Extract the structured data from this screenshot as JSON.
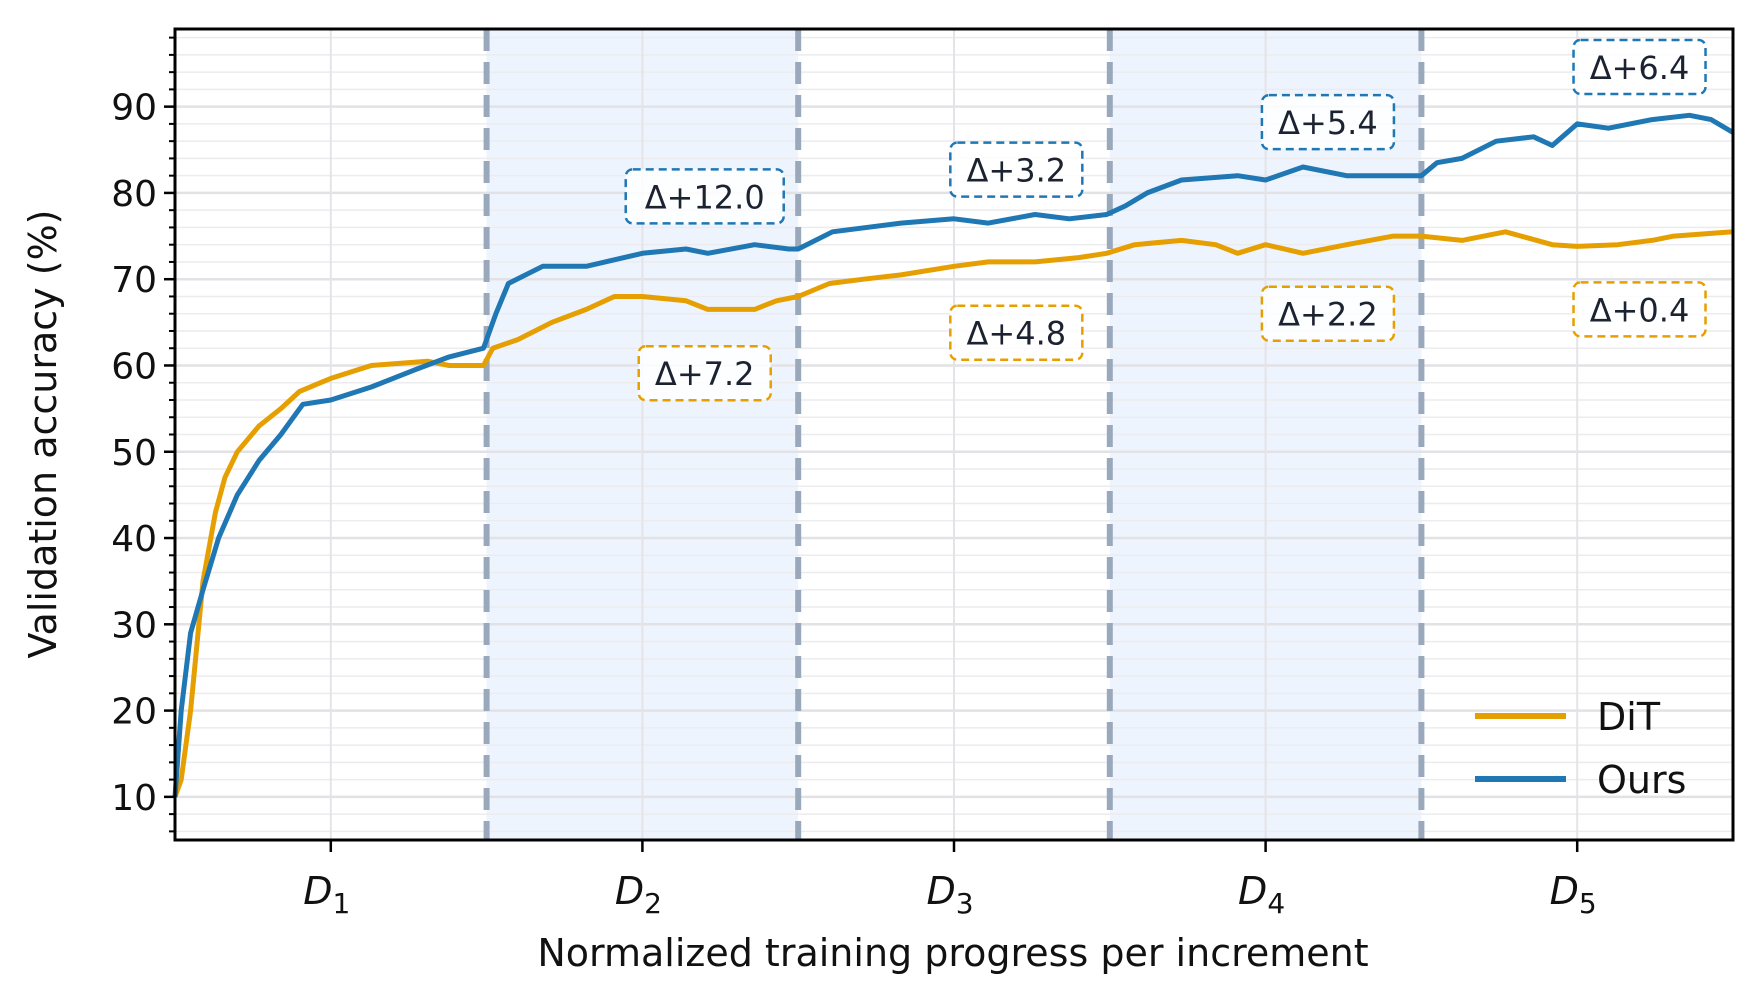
{
  "chart_data": {
    "type": "line",
    "title": "",
    "xlabel": "Normalized training progress per increment",
    "ylabel": "Validation accuracy (%)",
    "xlim": [
      0.5,
      5.5
    ],
    "ylim": [
      5,
      99
    ],
    "yticks": [
      10,
      20,
      30,
      40,
      50,
      60,
      70,
      80,
      90
    ],
    "yminor_step": 2,
    "xticks": [
      {
        "x": 1,
        "base": "D",
        "sub": "1"
      },
      {
        "x": 2,
        "base": "D",
        "sub": "2"
      },
      {
        "x": 3,
        "base": "D",
        "sub": "3"
      },
      {
        "x": 4,
        "base": "D",
        "sub": "4"
      },
      {
        "x": 5,
        "base": "D",
        "sub": "5"
      }
    ],
    "grid": true,
    "increment_boundaries": [
      1.5,
      2.5,
      3.5,
      4.5
    ],
    "shaded_spans": [
      [
        1.5,
        2.5
      ],
      [
        3.5,
        4.5
      ]
    ],
    "legend_position": "bottom-right",
    "colors": {
      "DiT": "#E69F00",
      "Ours": "#1F77B4",
      "boundary": "#9AA8BC",
      "shade": "#EEF4FD"
    },
    "series": [
      {
        "name": "DiT",
        "color": "#E69F00",
        "x": [
          0.5,
          0.52,
          0.55,
          0.59,
          0.63,
          0.66,
          0.7,
          0.77,
          0.84,
          0.9,
          1.0,
          1.13,
          1.31,
          1.38,
          1.49,
          1.52,
          1.6,
          1.71,
          1.82,
          1.91,
          2.0,
          2.14,
          2.21,
          2.36,
          2.43,
          2.5,
          2.6,
          2.71,
          2.83,
          3.0,
          3.11,
          3.26,
          3.4,
          3.49,
          3.58,
          3.73,
          3.84,
          3.91,
          4.0,
          4.12,
          4.26,
          4.41,
          4.5,
          4.63,
          4.77,
          4.92,
          5.0,
          5.13,
          5.24,
          5.31,
          5.5
        ],
        "y": [
          10,
          12,
          20,
          35,
          43,
          47,
          50,
          53,
          55,
          57,
          58.5,
          60,
          60.5,
          60,
          60,
          62,
          63,
          65,
          66.5,
          68,
          68,
          67.5,
          66.5,
          66.5,
          67.5,
          68,
          69.5,
          70,
          70.5,
          71.5,
          72,
          72,
          72.5,
          73,
          74,
          74.5,
          74,
          73,
          74,
          73,
          74,
          75,
          75,
          74.5,
          75.5,
          74,
          73.8,
          74,
          74.5,
          75,
          75.5
        ]
      },
      {
        "name": "Ours",
        "color": "#1F77B4",
        "x": [
          0.5,
          0.52,
          0.55,
          0.59,
          0.64,
          0.7,
          0.77,
          0.84,
          0.91,
          1.0,
          1.13,
          1.27,
          1.38,
          1.49,
          1.53,
          1.57,
          1.68,
          1.82,
          2.0,
          2.14,
          2.21,
          2.36,
          2.47,
          2.5,
          2.61,
          2.83,
          3.0,
          3.11,
          3.26,
          3.37,
          3.49,
          3.55,
          3.62,
          3.73,
          3.91,
          4.0,
          4.12,
          4.26,
          4.5,
          4.55,
          4.63,
          4.74,
          4.86,
          4.92,
          5.0,
          5.1,
          5.24,
          5.36,
          5.43,
          5.5
        ],
        "y": [
          10,
          20,
          29,
          34,
          40,
          45,
          49,
          52,
          55.5,
          56,
          57.5,
          59.5,
          61,
          62,
          66,
          69.5,
          71.5,
          71.5,
          73,
          73.5,
          73,
          74,
          73.5,
          73.5,
          75.5,
          76.5,
          77,
          76.5,
          77.5,
          77,
          77.5,
          78.5,
          80,
          81.5,
          82,
          81.5,
          83,
          82,
          82,
          83.5,
          84,
          86,
          86.5,
          85.5,
          88,
          87.5,
          88.5,
          89,
          88.5,
          87
        ]
      }
    ],
    "annotations": [
      {
        "text": "Δ+12.0",
        "series": "Ours",
        "x": 2.2,
        "y": 79.6
      },
      {
        "text": "Δ+7.2",
        "series": "DiT",
        "x": 2.2,
        "y": 59.1
      },
      {
        "text": "Δ+3.2",
        "series": "Ours",
        "x": 3.2,
        "y": 82.7
      },
      {
        "text": "Δ+4.8",
        "series": "DiT",
        "x": 3.2,
        "y": 63.8
      },
      {
        "text": "Δ+5.4",
        "series": "Ours",
        "x": 4.2,
        "y": 88.2
      },
      {
        "text": "Δ+2.2",
        "series": "DiT",
        "x": 4.2,
        "y": 66.0
      },
      {
        "text": "Δ+6.4",
        "series": "Ours",
        "x": 5.2,
        "y": 94.6
      },
      {
        "text": "Δ+0.4",
        "series": "DiT",
        "x": 5.2,
        "y": 66.5
      }
    ]
  }
}
